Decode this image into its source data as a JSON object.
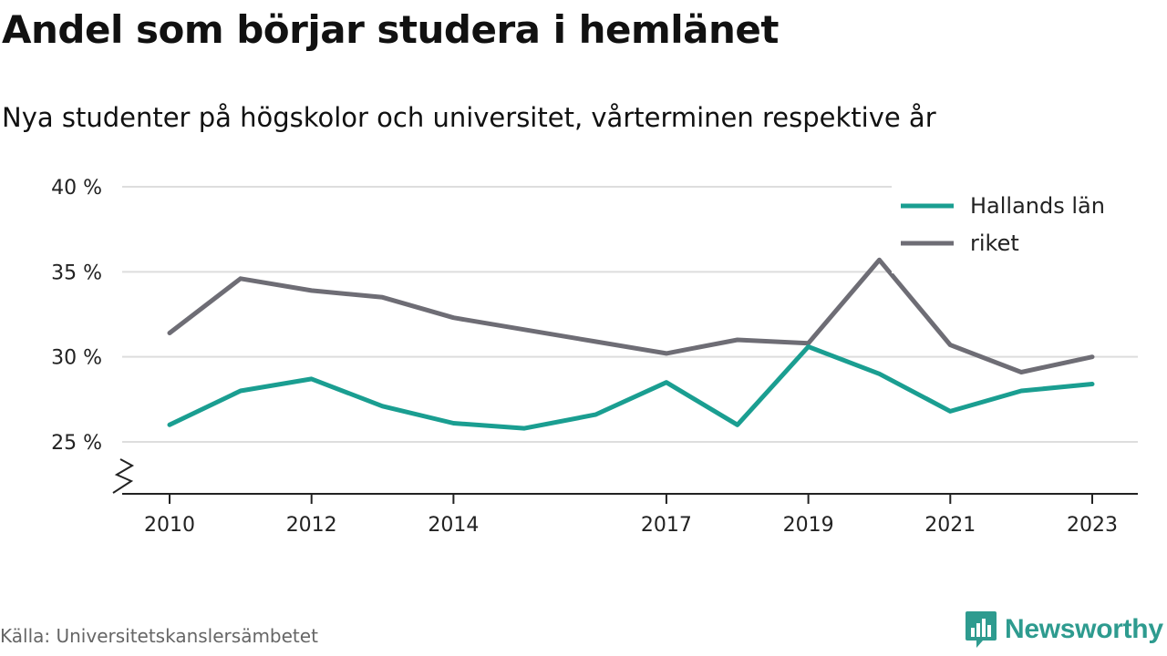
{
  "header": {
    "title": "Andel som börjar studera i hemlänet",
    "subtitle": "Nya studenter på högskolor och universitet, vårterminen respektive år"
  },
  "footer": {
    "source": "Källa: Universitetskanslersämbetet",
    "brand": "Newsworthy",
    "brand_color": "#2e9b8f"
  },
  "chart_data": {
    "type": "line",
    "title": "Andel som börjar studera i hemlänet",
    "subtitle": "Nya studenter på högskolor och universitet, vårterminen respektive år",
    "x": [
      2010,
      2011,
      2012,
      2013,
      2014,
      2015,
      2016,
      2017,
      2018,
      2019,
      2020,
      2021,
      2022,
      2023
    ],
    "x_ticks": [
      2010,
      2012,
      2014,
      2017,
      2019,
      2021,
      2023
    ],
    "x_tick_labels": [
      "2010",
      "2012",
      "2014",
      "2017",
      "2019",
      "2021",
      "2023"
    ],
    "y_ticks": [
      25,
      30,
      35,
      40
    ],
    "y_tick_labels": [
      "25 %",
      "30 %",
      "35 %",
      "40 %"
    ],
    "ylim": [
      22,
      40
    ],
    "y_axis_break": true,
    "grid": "horizontal",
    "legend_position": "top-right",
    "series": [
      {
        "name": "Hallands län",
        "color": "#1a9e91",
        "values": [
          26.0,
          28.0,
          28.7,
          27.1,
          26.1,
          25.8,
          26.6,
          28.5,
          26.0,
          30.6,
          29.0,
          26.8,
          28.0,
          28.4
        ]
      },
      {
        "name": "riket",
        "color": "#6e6d75",
        "values": [
          31.4,
          34.6,
          33.9,
          33.5,
          32.3,
          31.6,
          30.9,
          30.2,
          31.0,
          30.8,
          35.7,
          30.7,
          29.1,
          30.0
        ]
      }
    ]
  }
}
